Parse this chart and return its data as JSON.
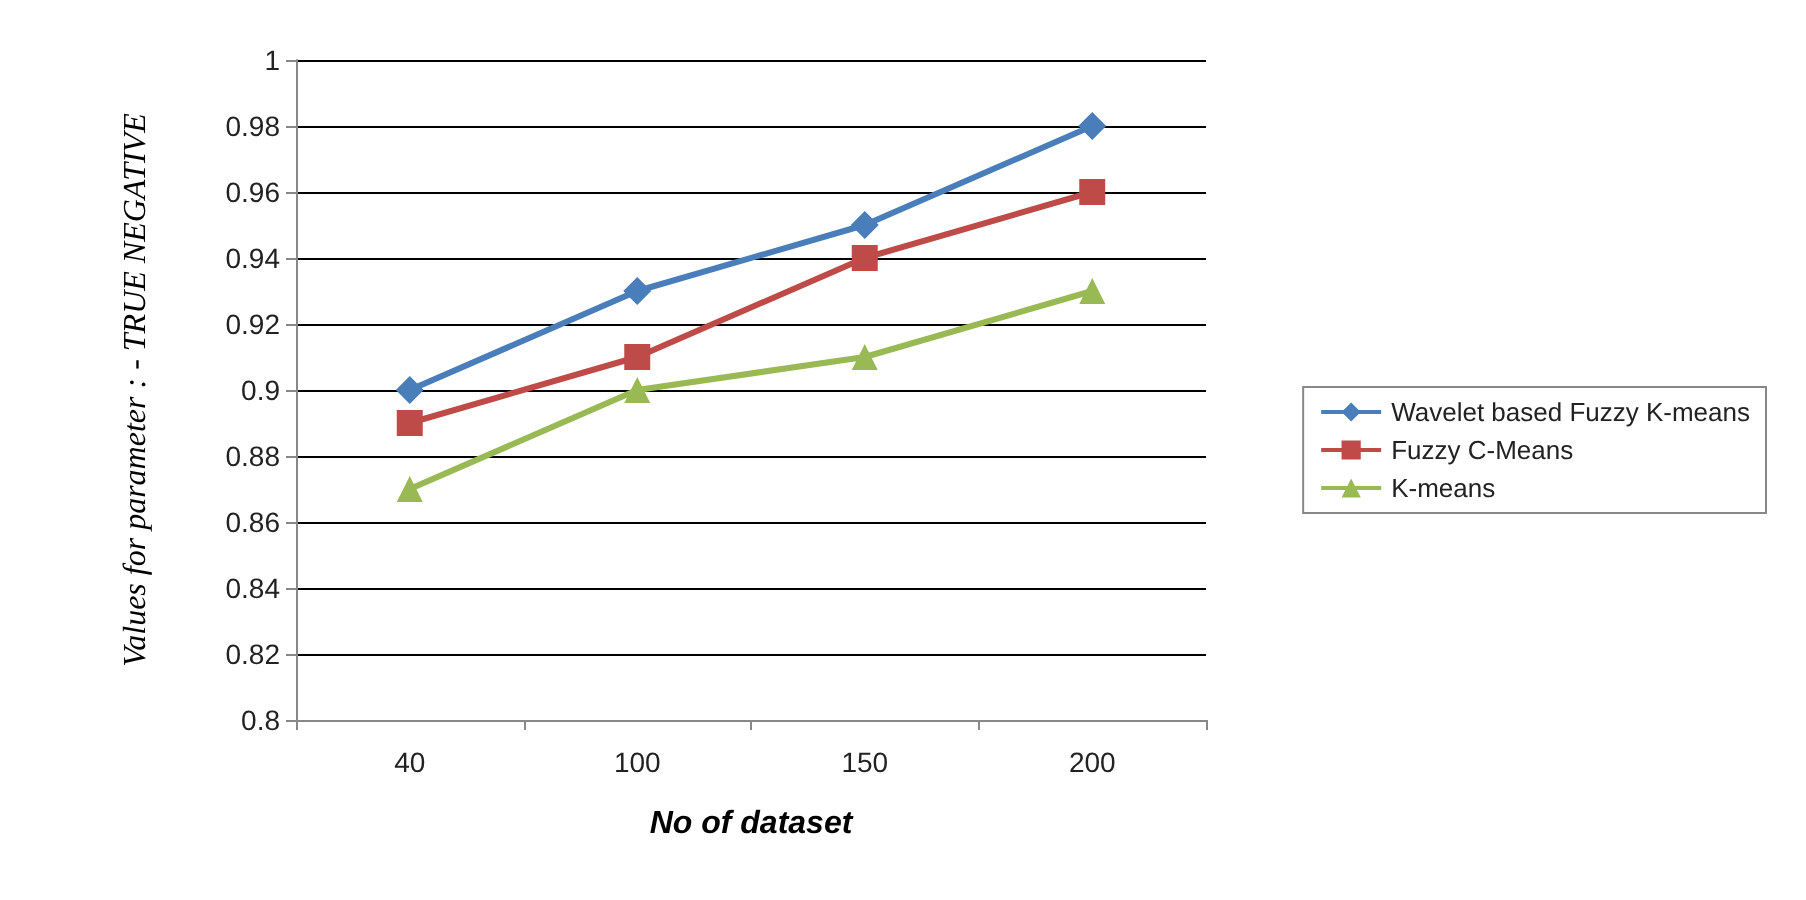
{
  "chart_data": {
    "type": "line",
    "xlabel": "No of dataset",
    "ylabel": "Values for parameter : - TRUE NEGATIVE",
    "categories": [
      "40",
      "100",
      "150",
      "200"
    ],
    "series": [
      {
        "name": "Wavelet based Fuzzy K-means",
        "color": "#4a7ebb",
        "marker": "diamond",
        "values": [
          0.9,
          0.93,
          0.95,
          0.98
        ]
      },
      {
        "name": "Fuzzy C-Means",
        "color": "#be4b48",
        "marker": "square",
        "values": [
          0.89,
          0.91,
          0.94,
          0.96
        ]
      },
      {
        "name": "K-means",
        "color": "#98b954",
        "marker": "triangle",
        "values": [
          0.87,
          0.9,
          0.91,
          0.93
        ]
      }
    ],
    "ylim": [
      0.8,
      1
    ],
    "yticks": [
      0.8,
      0.82,
      0.84,
      0.86,
      0.88,
      0.9,
      0.92,
      0.94,
      0.96,
      0.98,
      1
    ],
    "grid": "y",
    "legend": "right",
    "line_style": "solid"
  }
}
